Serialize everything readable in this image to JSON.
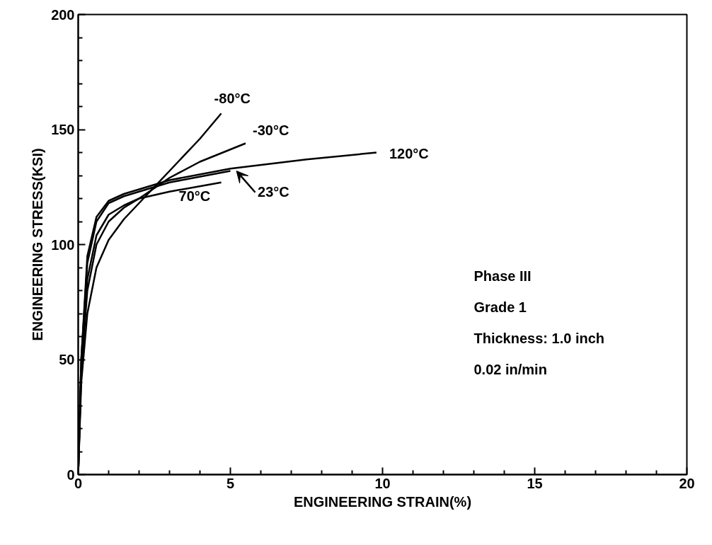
{
  "chart_data": {
    "type": "line",
    "xlabel": "ENGINEERING STRAIN(%)",
    "ylabel": "ENGINEERING STRESS(KSI)",
    "xlim": [
      0,
      20
    ],
    "ylim": [
      0,
      200
    ],
    "xticks": [
      0,
      5,
      10,
      15,
      20
    ],
    "yticks": [
      0,
      50,
      100,
      150,
      200
    ],
    "grid": false,
    "marker": "none",
    "line_style": "solid",
    "series": [
      {
        "color": "#000000",
        "x": [
          0,
          0.1,
          0.3,
          0.6,
          1,
          1.5,
          2,
          3,
          4,
          4.7
        ],
        "values": [
          0,
          40,
          70,
          90,
          102,
          111,
          118,
          132,
          146,
          157
        ]
      },
      {
        "color": "#000000",
        "x": [
          0,
          0.1,
          0.3,
          0.6,
          1,
          1.5,
          2,
          3,
          4,
          5.5
        ],
        "values": [
          0,
          45,
          80,
          100,
          110,
          116,
          120,
          129,
          136,
          144
        ]
      },
      {
        "color": "#000000",
        "x": [
          0,
          0.1,
          0.3,
          0.6,
          1,
          1.5,
          2,
          3,
          5,
          7.5,
          9.8
        ],
        "values": [
          0,
          50,
          95,
          112,
          119,
          122,
          124,
          128,
          133,
          137,
          140
        ]
      },
      {
        "color": "#000000",
        "x": [
          0,
          0.1,
          0.3,
          0.6,
          1,
          1.5,
          2,
          3,
          5
        ],
        "values": [
          0,
          50,
          92,
          110,
          118,
          121,
          123,
          127,
          132
        ]
      },
      {
        "color": "#000000",
        "x": [
          0,
          0.1,
          0.3,
          0.6,
          1,
          1.5,
          2,
          3,
          4.7
        ],
        "values": [
          0,
          45,
          85,
          104,
          113,
          117,
          120,
          123,
          127
        ]
      }
    ],
    "annotations": [
      {
        "text": "-80°C",
        "x": 4.7,
        "y": 157
      },
      {
        "text": "-30°C",
        "x": 5.5,
        "y": 144
      },
      {
        "text": "120°C",
        "x": 9.8,
        "y": 140
      },
      {
        "text": "23°C",
        "x": 5.2,
        "y": 132
      },
      {
        "text": "70°C",
        "x": 4.7,
        "y": 127
      },
      "Phase III",
      "Grade 1",
      "Thickness: 1.0 inch",
      "0.02 in/min"
    ]
  }
}
